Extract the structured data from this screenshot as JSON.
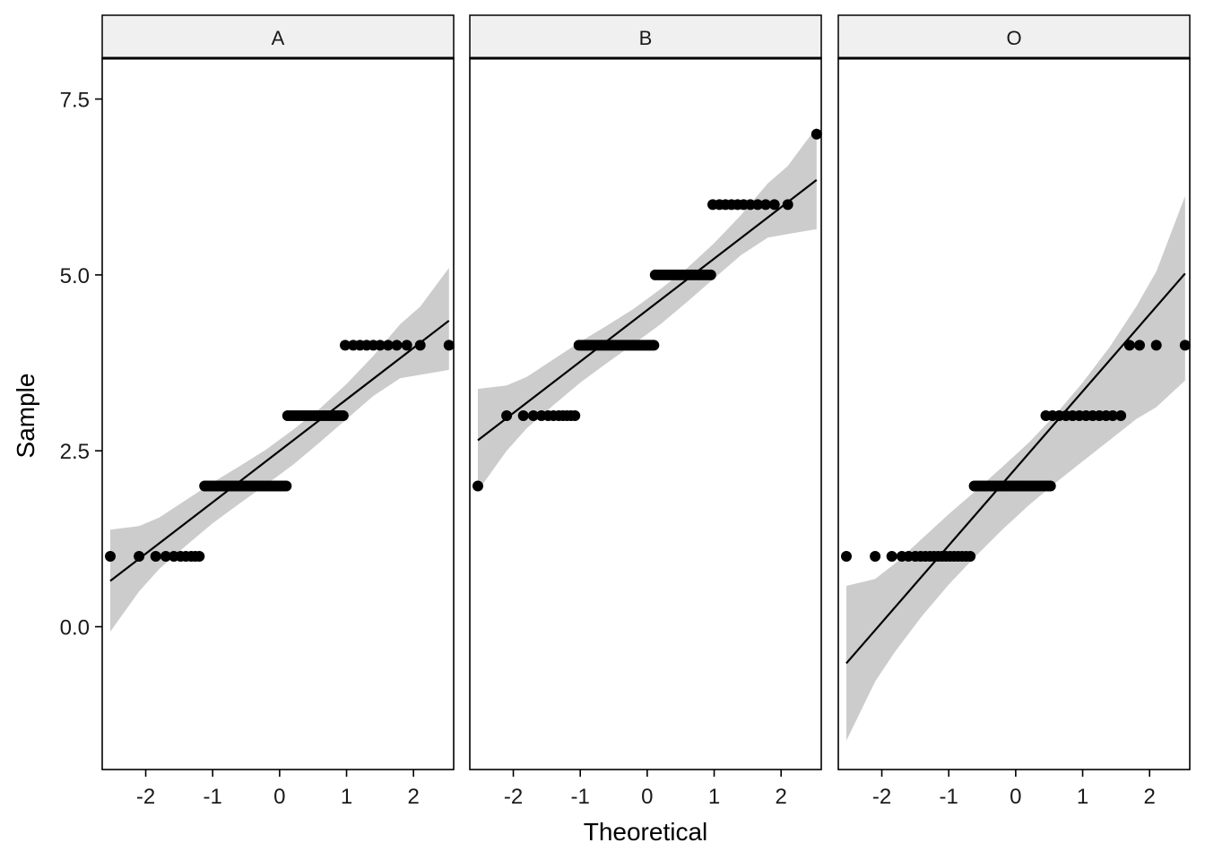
{
  "colors": {
    "background": "#ffffff",
    "strip_fill": "#f0f0f0",
    "band_fill": "#cccccc",
    "line": "#000000",
    "points": "#000000"
  },
  "chart_data": {
    "type": "scatter",
    "subtype": "qq-plot facets",
    "xlabel": "Theoretical",
    "ylabel": "Sample",
    "xlim": [
      -2.65,
      2.6
    ],
    "ylim": [
      -2.03,
      8.08
    ],
    "x_ticks": [
      -2,
      -1,
      0,
      1,
      2
    ],
    "x_tick_labels": [
      "-2",
      "-1",
      "0",
      "1",
      "2"
    ],
    "y_ticks": [
      0,
      2.5,
      5,
      7.5
    ],
    "y_tick_labels": [
      "0.0",
      "2.5",
      "5.0",
      "7.5"
    ],
    "grid": false,
    "legend": "none",
    "facets": [
      {
        "label": "A",
        "line": {
          "x": [
            -2.53,
            2.53
          ],
          "y": [
            0.65,
            4.35
          ]
        },
        "band": {
          "x": [
            -2.53,
            -2.1,
            -1.8,
            -1.4,
            -1.0,
            -0.6,
            -0.2,
            0.2,
            0.6,
            1.0,
            1.4,
            1.8,
            2.1,
            2.53
          ],
          "upper": [
            1.38,
            1.43,
            1.55,
            1.8,
            2.05,
            2.28,
            2.52,
            2.8,
            3.1,
            3.45,
            3.85,
            4.3,
            4.55,
            5.1
          ],
          "lower": [
            -0.07,
            0.5,
            0.82,
            1.15,
            1.47,
            1.75,
            2.02,
            2.3,
            2.62,
            2.95,
            3.28,
            3.53,
            3.58,
            3.65
          ]
        },
        "points": [
          {
            "y": 1,
            "x": [
              -2.53,
              -2.1,
              -1.85,
              -1.7,
              -1.58,
              -1.48,
              -1.4,
              -1.32,
              -1.26,
              -1.2
            ]
          },
          {
            "y": 2,
            "x": [
              -1.12,
              0.1
            ],
            "n": 40
          },
          {
            "y": 3,
            "x": [
              0.12,
              0.95
            ],
            "n": 20
          },
          {
            "y": 4,
            "x": [
              0.98,
              1.1,
              1.2,
              1.3,
              1.4,
              1.5,
              1.62,
              1.75,
              1.9,
              2.1,
              2.53
            ]
          }
        ]
      },
      {
        "label": "B",
        "line": {
          "x": [
            -2.53,
            2.53
          ],
          "y": [
            2.65,
            6.35
          ]
        },
        "band": {
          "x": [
            -2.53,
            -2.1,
            -1.8,
            -1.4,
            -1.0,
            -0.6,
            -0.2,
            0.2,
            0.6,
            1.0,
            1.4,
            1.8,
            2.1,
            2.53
          ],
          "upper": [
            3.38,
            3.43,
            3.55,
            3.8,
            4.05,
            4.28,
            4.52,
            4.8,
            5.1,
            5.45,
            5.85,
            6.3,
            6.55,
            7.1
          ],
          "lower": [
            1.93,
            2.5,
            2.82,
            3.15,
            3.47,
            3.75,
            4.02,
            4.3,
            4.62,
            4.95,
            5.28,
            5.53,
            5.58,
            5.65
          ]
        },
        "points": [
          {
            "y": 2,
            "x": [
              -2.53
            ]
          },
          {
            "y": 3,
            "x": [
              -2.1,
              -1.85,
              -1.7,
              -1.58,
              -1.48,
              -1.4,
              -1.32,
              -1.26,
              -1.2,
              -1.14,
              -1.08
            ]
          },
          {
            "y": 4,
            "x": [
              -1.02,
              0.1
            ],
            "n": 40
          },
          {
            "y": 5,
            "x": [
              0.12,
              0.95
            ],
            "n": 22
          },
          {
            "y": 6,
            "x": [
              0.98,
              1.08,
              1.17,
              1.26,
              1.35,
              1.44,
              1.54,
              1.65,
              1.77,
              1.9,
              2.1
            ]
          },
          {
            "y": 7,
            "x": [
              2.53
            ]
          }
        ]
      },
      {
        "label": "O",
        "line": {
          "x": [
            -2.53,
            2.53
          ],
          "y": [
            -0.52,
            5.02
          ]
        },
        "band": {
          "x": [
            -2.53,
            -2.1,
            -1.8,
            -1.4,
            -1.0,
            -0.6,
            -0.2,
            0.2,
            0.6,
            1.0,
            1.4,
            1.8,
            2.1,
            2.53
          ],
          "upper": [
            0.58,
            0.68,
            0.9,
            1.25,
            1.6,
            1.93,
            2.27,
            2.62,
            3.02,
            3.47,
            3.97,
            4.55,
            5.05,
            6.12
          ],
          "lower": [
            -1.62,
            -0.78,
            -0.35,
            0.15,
            0.6,
            1.0,
            1.38,
            1.73,
            2.05,
            2.35,
            2.65,
            2.95,
            3.12,
            3.5
          ]
        },
        "points": [
          {
            "y": 1,
            "x": [
              -2.53,
              -2.1,
              -1.85,
              -1.7,
              -1.6,
              -1.5,
              -1.42,
              -1.35,
              -1.28,
              -1.22,
              -1.16,
              -1.1,
              -1.04,
              -0.98,
              -0.92,
              -0.86,
              -0.8,
              -0.74,
              -0.68
            ]
          },
          {
            "y": 2,
            "x": [
              -0.62,
              0.52
            ],
            "n": 40
          },
          {
            "y": 3,
            "x": [
              0.45,
              0.55,
              0.65,
              0.75,
              0.85,
              0.95,
              1.05,
              1.15,
              1.25,
              1.35,
              1.45,
              1.57
            ]
          },
          {
            "y": 4,
            "x": [
              1.7,
              1.85,
              2.1,
              2.53
            ]
          }
        ]
      }
    ]
  }
}
